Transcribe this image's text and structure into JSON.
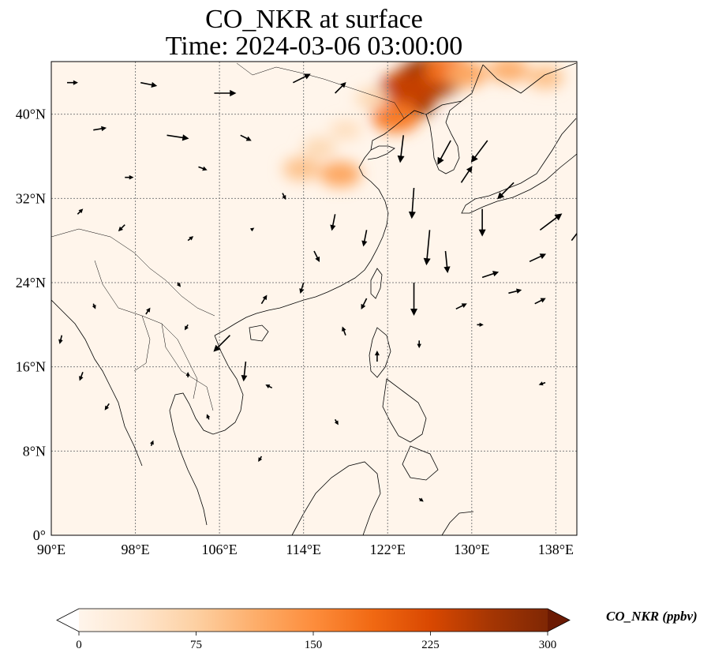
{
  "title": {
    "line1": "CO_NKR at surface",
    "line2": "Time: 2024-03-06 03:00:00"
  },
  "map": {
    "extent": {
      "lon": [
        90,
        140
      ],
      "lat": [
        0,
        45
      ]
    },
    "lon_ticks": [
      {
        "value": 90,
        "label": "90°E"
      },
      {
        "value": 98,
        "label": "98°E"
      },
      {
        "value": 106,
        "label": "106°E"
      },
      {
        "value": 114,
        "label": "114°E"
      },
      {
        "value": 122,
        "label": "122°E"
      },
      {
        "value": 130,
        "label": "130°E"
      },
      {
        "value": 138,
        "label": "138°E"
      }
    ],
    "lat_ticks": [
      {
        "value": 0,
        "label": "0°"
      },
      {
        "value": 8,
        "label": "8°N"
      },
      {
        "value": 16,
        "label": "16°N"
      },
      {
        "value": 24,
        "label": "24°N"
      },
      {
        "value": 32,
        "label": "32°N"
      },
      {
        "value": 40,
        "label": "40°N"
      }
    ],
    "background_color": "#fff5eb",
    "plumes": [
      {
        "lon": 126.5,
        "lat": 43.7,
        "level": 300
      },
      {
        "lon": 125.5,
        "lat": 43.2,
        "level": 280
      },
      {
        "lon": 123.4,
        "lat": 41.2,
        "level": 290
      },
      {
        "lon": 123.8,
        "lat": 42.3,
        "level": 240
      },
      {
        "lon": 127.8,
        "lat": 44.2,
        "level": 180
      },
      {
        "lon": 129.5,
        "lat": 43.8,
        "level": 120
      },
      {
        "lon": 133.5,
        "lat": 44.2,
        "level": 110
      },
      {
        "lon": 137.0,
        "lat": 43.5,
        "level": 90
      },
      {
        "lon": 122.8,
        "lat": 39.7,
        "level": 170
      },
      {
        "lon": 117.5,
        "lat": 34.3,
        "level": 120
      },
      {
        "lon": 113.8,
        "lat": 34.8,
        "level": 90
      },
      {
        "lon": 115.5,
        "lat": 36.8,
        "level": 60
      },
      {
        "lon": 118.0,
        "lat": 38.5,
        "level": 50
      },
      {
        "lon": 120.5,
        "lat": 41.5,
        "level": 60
      }
    ],
    "wind_vectors": [
      {
        "lon": 91.5,
        "lat": 43.0,
        "u": 1.0,
        "v": 0.0
      },
      {
        "lon": 98.5,
        "lat": 43.0,
        "u": 1.5,
        "v": -0.3
      },
      {
        "lon": 105.5,
        "lat": 42.0,
        "u": 2.0,
        "v": 0.0
      },
      {
        "lon": 113.0,
        "lat": 43.0,
        "u": 1.6,
        "v": 0.8
      },
      {
        "lon": 117.0,
        "lat": 42.0,
        "u": 1.0,
        "v": 1.0
      },
      {
        "lon": 94.0,
        "lat": 38.5,
        "u": 1.2,
        "v": 0.2
      },
      {
        "lon": 101.0,
        "lat": 38.0,
        "u": 2.0,
        "v": -0.3
      },
      {
        "lon": 108.0,
        "lat": 38.0,
        "u": 1.0,
        "v": -0.5
      },
      {
        "lon": 97.0,
        "lat": 34.0,
        "u": 0.8,
        "v": 0.0
      },
      {
        "lon": 104.0,
        "lat": 35.0,
        "u": 0.8,
        "v": -0.3
      },
      {
        "lon": 97.0,
        "lat": 29.5,
        "u": -0.6,
        "v": -0.6
      },
      {
        "lon": 103.0,
        "lat": 28.0,
        "u": 0.5,
        "v": 0.4
      },
      {
        "lon": 109.0,
        "lat": 29.0,
        "u": 0.3,
        "v": 0.2
      },
      {
        "lon": 115.0,
        "lat": 27.0,
        "u": 0.5,
        "v": -1.0
      },
      {
        "lon": 120.0,
        "lat": 29.0,
        "u": -0.3,
        "v": -1.5
      },
      {
        "lon": 123.5,
        "lat": 38.0,
        "u": -0.3,
        "v": -2.5
      },
      {
        "lon": 124.5,
        "lat": 33.0,
        "u": -0.2,
        "v": -2.8
      },
      {
        "lon": 126.0,
        "lat": 29.0,
        "u": -0.3,
        "v": -3.2
      },
      {
        "lon": 124.5,
        "lat": 24.0,
        "u": 0.0,
        "v": -3.0
      },
      {
        "lon": 127.5,
        "lat": 27.0,
        "u": 0.2,
        "v": -2.0
      },
      {
        "lon": 128.0,
        "lat": 37.5,
        "u": -1.2,
        "v": -2.2
      },
      {
        "lon": 131.5,
        "lat": 37.5,
        "u": -1.5,
        "v": -2.0
      },
      {
        "lon": 134.0,
        "lat": 33.5,
        "u": -1.5,
        "v": -1.5
      },
      {
        "lon": 131.0,
        "lat": 31.0,
        "u": 0.0,
        "v": -2.5
      },
      {
        "lon": 136.5,
        "lat": 29.0,
        "u": 2.0,
        "v": 1.5
      },
      {
        "lon": 139.5,
        "lat": 28.0,
        "u": 1.5,
        "v": 2.0
      },
      {
        "lon": 135.5,
        "lat": 26.0,
        "u": 1.5,
        "v": 0.7
      },
      {
        "lon": 131.0,
        "lat": 24.5,
        "u": 1.5,
        "v": 0.5
      },
      {
        "lon": 128.5,
        "lat": 21.5,
        "u": 1.0,
        "v": 0.5
      },
      {
        "lon": 133.5,
        "lat": 23.0,
        "u": 1.2,
        "v": 0.3
      },
      {
        "lon": 136.0,
        "lat": 22.0,
        "u": 1.0,
        "v": 0.5
      },
      {
        "lon": 120.0,
        "lat": 22.5,
        "u": -0.5,
        "v": -1.0
      },
      {
        "lon": 114.0,
        "lat": 24.0,
        "u": -0.3,
        "v": -1.0
      },
      {
        "lon": 110.0,
        "lat": 22.0,
        "u": 0.5,
        "v": 0.8
      },
      {
        "lon": 107.0,
        "lat": 19.0,
        "u": -1.5,
        "v": -1.5
      },
      {
        "lon": 108.5,
        "lat": 16.5,
        "u": -0.2,
        "v": -1.8
      },
      {
        "lon": 103.0,
        "lat": 20.0,
        "u": -0.3,
        "v": -0.5
      },
      {
        "lon": 99.0,
        "lat": 21.0,
        "u": 0.4,
        "v": 0.6
      },
      {
        "lon": 94.0,
        "lat": 22.0,
        "u": 0.2,
        "v": -0.5
      },
      {
        "lon": 91.0,
        "lat": 19.0,
        "u": -0.2,
        "v": -0.8
      },
      {
        "lon": 93.0,
        "lat": 15.5,
        "u": -0.3,
        "v": -0.8
      },
      {
        "lon": 95.5,
        "lat": 12.5,
        "u": -0.4,
        "v": -0.6
      },
      {
        "lon": 103.0,
        "lat": 15.0,
        "u": 0.0,
        "v": 0.5
      },
      {
        "lon": 111.0,
        "lat": 14.0,
        "u": -0.6,
        "v": 0.3
      },
      {
        "lon": 118.0,
        "lat": 19.0,
        "u": -0.3,
        "v": 0.8
      },
      {
        "lon": 121.0,
        "lat": 16.5,
        "u": 0.0,
        "v": 1.0
      },
      {
        "lon": 125.0,
        "lat": 18.5,
        "u": 0.0,
        "v": -0.7
      },
      {
        "lon": 130.5,
        "lat": 20.0,
        "u": 0.6,
        "v": 0.0
      },
      {
        "lon": 137.0,
        "lat": 14.5,
        "u": -0.6,
        "v": -0.2
      },
      {
        "lon": 117.0,
        "lat": 11.0,
        "u": 0.3,
        "v": -0.5
      },
      {
        "lon": 105.0,
        "lat": 11.0,
        "u": -0.2,
        "v": 0.5
      },
      {
        "lon": 99.5,
        "lat": 8.5,
        "u": 0.2,
        "v": 0.5
      },
      {
        "lon": 110.0,
        "lat": 7.5,
        "u": -0.3,
        "v": -0.5
      },
      {
        "lon": 125.0,
        "lat": 3.5,
        "u": 0.4,
        "v": -0.3
      },
      {
        "lon": 92.5,
        "lat": 30.5,
        "u": 0.5,
        "v": 0.5
      },
      {
        "lon": 102.0,
        "lat": 24.0,
        "u": 0.3,
        "v": -0.4
      },
      {
        "lon": 117.0,
        "lat": 30.5,
        "u": -0.3,
        "v": -1.5
      },
      {
        "lon": 112.0,
        "lat": 32.5,
        "u": 0.3,
        "v": -0.6
      },
      {
        "lon": 129.0,
        "lat": 33.5,
        "u": 1.0,
        "v": 1.5
      }
    ]
  },
  "colorbar": {
    "label": "CO_NKR (ppbv)",
    "min": 0,
    "max": 300,
    "extend": "both",
    "ticks": [
      {
        "value": 0,
        "label": "0"
      },
      {
        "value": 75,
        "label": "75"
      },
      {
        "value": 150,
        "label": "150"
      },
      {
        "value": 225,
        "label": "225"
      },
      {
        "value": 300,
        "label": "300"
      }
    ],
    "colors": [
      "#fff5eb",
      "#fee6ce",
      "#fdd0a2",
      "#fdae6b",
      "#fd8d3c",
      "#f16913",
      "#d94801",
      "#a63603",
      "#7f2704"
    ],
    "under_color": "#ffffff",
    "over_color": "#6b1a03"
  },
  "colors": {
    "coastline": "#000000",
    "gridline": "#808080",
    "wind_arrow": "#000000"
  }
}
